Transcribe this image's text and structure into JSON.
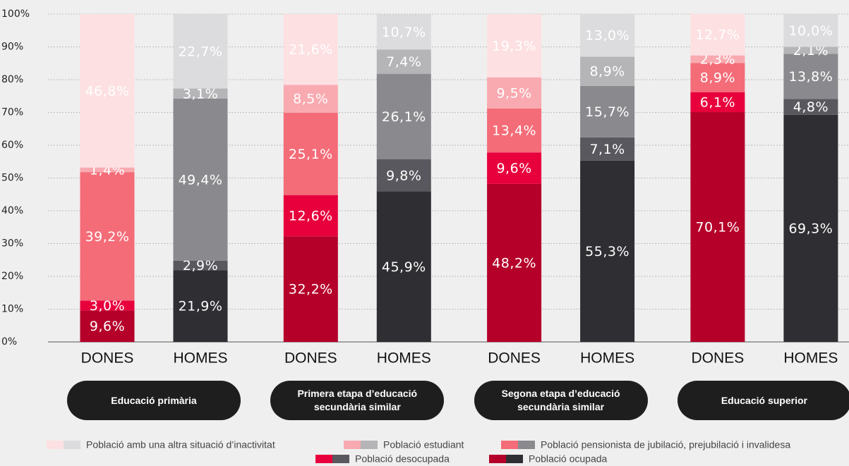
{
  "chart_data": {
    "type": "stacked_bar",
    "categories": [
      "DONES",
      "HOMES",
      "DONES",
      "HOMES",
      "DONES",
      "HOMES",
      "DONES",
      "HOMES"
    ],
    "groups": [
      "Educació primària",
      "Primera etapa d’educació secundària similar",
      "Segona etapa d’educació secundària similar",
      "Educació superior"
    ],
    "ylim": [
      0,
      100
    ],
    "yticks": [
      {
        "value": 0,
        "label": "0%"
      },
      {
        "value": 10,
        "label": "10%"
      },
      {
        "value": 20,
        "label": "20%"
      },
      {
        "value": 30,
        "label": "30%"
      },
      {
        "value": 40,
        "label": "40%"
      },
      {
        "value": 50,
        "label": "50%"
      },
      {
        "value": 60,
        "label": "60%"
      },
      {
        "value": 70,
        "label": "70%"
      },
      {
        "value": 80,
        "label": "80%"
      },
      {
        "value": 90,
        "label": "90%"
      },
      {
        "value": 100,
        "label": "100%"
      }
    ],
    "grid": true,
    "series": [
      {
        "name": "Població ocupada",
        "colors": [
          "#b5002a",
          "#2e2e33"
        ],
        "values": [
          9.6,
          21.9,
          32.2,
          45.9,
          48.2,
          55.3,
          70.1,
          69.3
        ],
        "value_labels": [
          "9,6%",
          "21,9%",
          "32,2%",
          "45,9%",
          "48,2%",
          "55,3%",
          "70,1%",
          "69,3%"
        ]
      },
      {
        "name": "Població desocupada",
        "colors": [
          "#e8003d",
          "#58585e"
        ],
        "values": [
          3.0,
          2.9,
          12.6,
          9.8,
          9.6,
          7.1,
          6.1,
          4.8
        ],
        "value_labels": [
          "3,0%",
          "2,9%",
          "12,6%",
          "9,8%",
          "9,6%",
          "7,1%",
          "6,1%",
          "4,8%"
        ]
      },
      {
        "name": "Població pensionista de jubilació, prejubilació i invalidesa",
        "colors": [
          "#f46c78",
          "#8a8a8e"
        ],
        "values": [
          39.2,
          49.4,
          25.1,
          26.1,
          13.4,
          15.7,
          8.9,
          13.8
        ],
        "value_labels": [
          "39,2%",
          "49,4%",
          "25,1%",
          "26,1%",
          "13,4%",
          "15,7%",
          "8,9%",
          "13,8%"
        ]
      },
      {
        "name": "Població estudiant",
        "colors": [
          "#f9aab0",
          "#b5b5b8"
        ],
        "values": [
          1.4,
          3.1,
          8.5,
          7.4,
          9.5,
          8.9,
          2.3,
          2.1
        ],
        "value_labels": [
          "1,4%",
          "3,1%",
          "8,5%",
          "7,4%",
          "9,5%",
          "8,9%",
          "2,3%",
          "2,1%"
        ]
      },
      {
        "name": "Població amb una altra situació d’inactivitat",
        "colors": [
          "#fde0e2",
          "#dcdcde"
        ],
        "values": [
          46.8,
          22.7,
          21.6,
          10.7,
          19.3,
          13.0,
          12.7,
          10.0
        ],
        "value_labels": [
          "46,8%",
          "22,7%",
          "21,6%",
          "10,7%",
          "19,3%",
          "13,0%",
          "12,7%",
          "10,0%"
        ]
      }
    ]
  }
}
